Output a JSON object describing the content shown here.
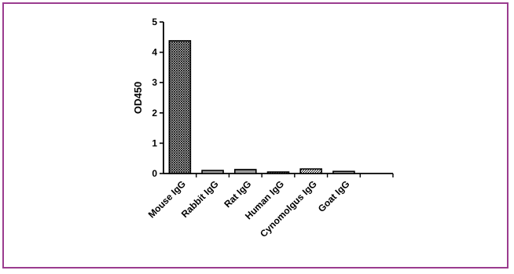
{
  "chart_data": {
    "type": "bar",
    "title": "",
    "xlabel": "",
    "ylabel": "OD450",
    "ylim": [
      0,
      5
    ],
    "yticks": [
      0,
      1,
      2,
      3,
      4,
      5
    ],
    "grid": false,
    "legend": "none",
    "categories": [
      "Mouse IgG",
      "Rabbit IgG",
      "Rat IgG",
      "Human IgG",
      "Cynomolgus IgG",
      "Goat IgG"
    ],
    "values": [
      4.38,
      0.1,
      0.13,
      0.05,
      0.15,
      0.07
    ],
    "bar_fill_patterns": [
      "crosshatch",
      "horizontal-lines",
      "horizontal-lines",
      "diagonal-lines",
      "diagonal-lines",
      "horizontal-lines"
    ],
    "colors": {
      "frame": "#9b3c8f",
      "axis": "#000000",
      "bar_stroke": "#000000"
    }
  }
}
